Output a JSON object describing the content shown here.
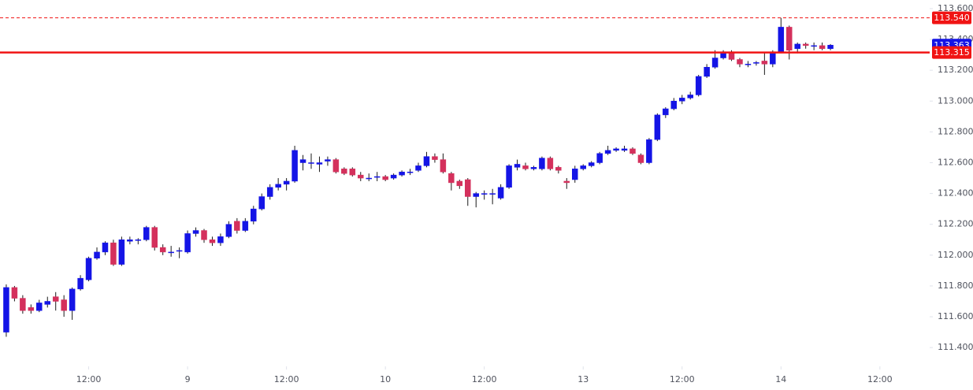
{
  "chart_data": {
    "type": "candlestick",
    "x": [
      0,
      1,
      2,
      3,
      4,
      5,
      6,
      7,
      8,
      9,
      10,
      11,
      12,
      13,
      14,
      15,
      16,
      17,
      18,
      19,
      20,
      21,
      22,
      23,
      24,
      25,
      26,
      27,
      28,
      29,
      30,
      31,
      32,
      33,
      34,
      35,
      36,
      37,
      38,
      39,
      40,
      41,
      42,
      43,
      44,
      45,
      46,
      47,
      48,
      49,
      50,
      51,
      52,
      53,
      54,
      55,
      56,
      57,
      58,
      59,
      60,
      61,
      62,
      63,
      64,
      65,
      66,
      67,
      68,
      69,
      70,
      71,
      72,
      73,
      74,
      75,
      76,
      77,
      78,
      79,
      80,
      81,
      82,
      83,
      84,
      85,
      86,
      87,
      88,
      89,
      90,
      91,
      92,
      93,
      94,
      95,
      96,
      97,
      98,
      99,
      100
    ],
    "open": [
      111.5,
      111.79,
      111.72,
      111.66,
      111.64,
      111.68,
      111.73,
      111.71,
      111.64,
      111.78,
      111.84,
      111.98,
      112.02,
      112.08,
      111.94,
      112.09,
      112.1,
      112.1,
      112.18,
      112.05,
      112.02,
      112.03,
      112.02,
      112.14,
      112.16,
      112.1,
      112.08,
      112.12,
      112.22,
      112.16,
      112.22,
      112.3,
      112.38,
      112.44,
      112.46,
      112.48,
      112.6,
      112.6,
      112.59,
      112.61,
      112.62,
      112.56,
      112.56,
      112.52,
      112.5,
      112.51,
      112.51,
      112.5,
      112.52,
      112.54,
      112.55,
      112.58,
      112.64,
      112.62,
      112.53,
      112.48,
      112.49,
      112.38,
      112.4,
      112.4,
      112.37,
      112.44,
      112.57,
      112.58,
      112.56,
      112.56,
      112.63,
      112.57,
      112.48,
      112.49,
      112.56,
      112.58,
      112.6,
      112.66,
      112.68,
      112.68,
      112.69,
      112.65,
      112.6,
      112.75,
      112.91,
      112.95,
      113.0,
      113.02,
      113.04,
      113.16,
      113.22,
      113.28,
      113.32,
      113.27,
      113.24,
      113.25,
      113.26,
      113.24,
      113.32,
      113.48,
      113.34,
      113.37,
      113.36,
      113.36,
      113.34
    ],
    "high": [
      111.81,
      111.8,
      111.74,
      111.68,
      111.71,
      111.73,
      111.76,
      111.74,
      111.79,
      111.87,
      111.99,
      112.05,
      112.09,
      112.1,
      112.12,
      112.12,
      112.11,
      112.19,
      112.19,
      112.07,
      112.06,
      112.05,
      112.16,
      112.18,
      112.17,
      112.12,
      112.14,
      112.22,
      112.24,
      112.24,
      112.32,
      112.4,
      112.46,
      112.5,
      112.5,
      112.71,
      112.65,
      112.66,
      112.64,
      112.64,
      112.63,
      112.57,
      112.57,
      112.54,
      112.53,
      112.54,
      112.52,
      112.53,
      112.55,
      112.56,
      112.6,
      112.67,
      112.66,
      112.66,
      112.54,
      112.49,
      112.5,
      112.41,
      112.42,
      112.43,
      112.46,
      112.59,
      112.62,
      112.6,
      112.58,
      112.64,
      112.64,
      112.58,
      112.5,
      112.58,
      112.59,
      112.61,
      112.67,
      112.71,
      112.7,
      112.71,
      112.7,
      112.66,
      112.76,
      112.92,
      112.96,
      113.02,
      113.04,
      113.06,
      113.17,
      113.24,
      113.33,
      113.33,
      113.33,
      113.28,
      113.26,
      113.26,
      113.32,
      113.33,
      113.54,
      113.49,
      113.38,
      113.38,
      113.38,
      113.38,
      113.37
    ],
    "low": [
      111.47,
      111.7,
      111.62,
      111.62,
      111.63,
      111.66,
      111.64,
      111.6,
      111.58,
      111.77,
      111.83,
      111.97,
      112.0,
      111.93,
      111.93,
      112.07,
      112.07,
      112.09,
      112.03,
      112.0,
      111.99,
      111.98,
      112.01,
      112.12,
      112.08,
      112.06,
      112.06,
      112.11,
      112.14,
      112.15,
      112.2,
      112.29,
      112.36,
      112.42,
      112.42,
      112.47,
      112.55,
      112.56,
      112.54,
      112.58,
      112.53,
      112.52,
      112.51,
      112.48,
      112.48,
      112.48,
      112.48,
      112.49,
      112.51,
      112.52,
      112.54,
      112.57,
      112.6,
      112.53,
      112.42,
      112.43,
      112.32,
      112.31,
      112.36,
      112.33,
      112.36,
      112.43,
      112.55,
      112.55,
      112.55,
      112.55,
      112.55,
      112.53,
      112.43,
      112.47,
      112.55,
      112.57,
      112.59,
      112.65,
      112.67,
      112.67,
      112.65,
      112.59,
      112.59,
      112.74,
      112.89,
      112.94,
      112.98,
      113.01,
      113.03,
      113.15,
      113.21,
      113.27,
      113.26,
      113.22,
      113.22,
      113.23,
      113.17,
      113.22,
      113.31,
      113.27,
      113.31,
      113.34,
      113.33,
      113.33,
      113.33
    ],
    "close": [
      111.79,
      111.72,
      111.64,
      111.64,
      111.69,
      111.7,
      111.7,
      111.64,
      111.78,
      111.85,
      111.98,
      112.02,
      112.08,
      111.94,
      112.1,
      112.1,
      112.1,
      112.18,
      112.05,
      112.02,
      112.02,
      112.03,
      112.14,
      112.16,
      112.1,
      112.08,
      112.12,
      112.2,
      112.16,
      112.22,
      112.3,
      112.38,
      112.44,
      112.46,
      112.48,
      112.68,
      112.62,
      112.6,
      112.6,
      112.62,
      112.54,
      112.53,
      112.52,
      112.5,
      112.5,
      112.51,
      112.49,
      112.52,
      112.54,
      112.54,
      112.58,
      112.64,
      112.62,
      112.54,
      112.47,
      112.45,
      112.38,
      112.4,
      112.4,
      112.4,
      112.44,
      112.58,
      112.59,
      112.56,
      112.57,
      112.63,
      112.56,
      112.55,
      112.47,
      112.56,
      112.58,
      112.6,
      112.66,
      112.68,
      112.69,
      112.69,
      112.66,
      112.6,
      112.75,
      112.91,
      112.95,
      113.0,
      113.02,
      113.04,
      113.16,
      113.22,
      113.28,
      113.32,
      113.27,
      113.24,
      113.24,
      113.25,
      113.24,
      113.32,
      113.48,
      113.33,
      113.37,
      113.36,
      113.36,
      113.34,
      113.363
    ],
    "up_color": "#1414e6",
    "down_color": "#d4305c",
    "wick_color": "#1a1a1a",
    "xlim": [
      -0.76,
      112.04
    ],
    "xticks": [
      {
        "value": 10,
        "label": "12:00"
      },
      {
        "value": 22,
        "label": "9"
      },
      {
        "value": 34,
        "label": "12:00"
      },
      {
        "value": 46,
        "label": "10"
      },
      {
        "value": 58,
        "label": "12:00"
      },
      {
        "value": 70,
        "label": "13"
      },
      {
        "value": 82,
        "label": "12:00"
      },
      {
        "value": 94,
        "label": "14"
      },
      {
        "value": 106,
        "label": "12:00"
      }
    ],
    "ylim": [
      111.278,
      113.656
    ],
    "yticks": [
      {
        "value": 111.4,
        "label": "111.400"
      },
      {
        "value": 111.6,
        "label": "111.600"
      },
      {
        "value": 111.8,
        "label": "111.800"
      },
      {
        "value": 112.0,
        "label": "112.000"
      },
      {
        "value": 112.2,
        "label": "112.200"
      },
      {
        "value": 112.4,
        "label": "112.400"
      },
      {
        "value": 112.6,
        "label": "112.600"
      },
      {
        "value": 112.8,
        "label": "112.800"
      },
      {
        "value": 113.0,
        "label": "113.000"
      },
      {
        "value": 113.2,
        "label": "113.200"
      },
      {
        "value": 113.4,
        "label": "113.400"
      },
      {
        "value": 113.6,
        "label": "113.600"
      }
    ],
    "price_lines": [
      {
        "value": 113.54,
        "label": "113.540",
        "color": "#f01414",
        "style": "dashed"
      },
      {
        "value": 113.363,
        "label": "113.363",
        "color": "#1414e6",
        "style": "none"
      },
      {
        "value": 113.315,
        "label": "113.315",
        "color": "#f01414",
        "style": "solid"
      }
    ]
  }
}
